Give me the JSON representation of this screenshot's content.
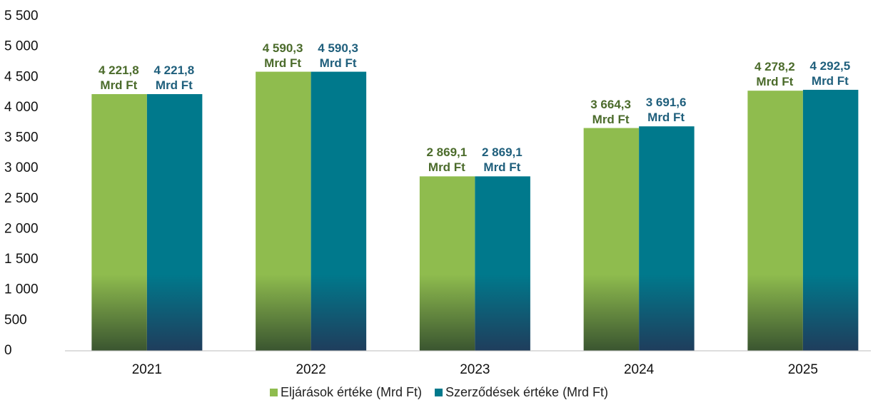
{
  "chart_data": {
    "type": "bar",
    "categories": [
      "2021",
      "2022",
      "2023",
      "2024",
      "2025"
    ],
    "series": [
      {
        "name": "Eljárások értéke (Mrd Ft)",
        "color": "#8fbc4e",
        "label_color": "#4b6b2b",
        "values": [
          4221.8,
          4590.3,
          2869.1,
          3664.3,
          4278.2
        ],
        "value_labels": [
          "4 221,8 Mrd Ft",
          "4 590,3 Mrd Ft",
          "2 869,1 Mrd Ft",
          "3 664,3 Mrd Ft",
          "4 278,2 Mrd Ft"
        ]
      },
      {
        "name": "Szerződések értéke (Mrd Ft)",
        "color": "#00798c",
        "label_color": "#1f5f7c",
        "values": [
          4221.8,
          4590.3,
          2869.1,
          3691.6,
          4292.5
        ],
        "value_labels": [
          "4 221,8 Mrd Ft",
          "4 590,3 Mrd Ft",
          "2 869,1 Mrd Ft",
          "3 691,6 Mrd Ft",
          "4 292,5 Mrd Ft"
        ]
      }
    ],
    "ylim": [
      0,
      5500
    ],
    "yticks": [
      0,
      500,
      {
        "value": 1000,
        "label": "1 000"
      },
      {
        "value": 1500,
        "label": "1 500"
      },
      {
        "value": 2000,
        "label": "2 000"
      },
      {
        "value": 2500,
        "label": "2 500"
      },
      {
        "value": 3000,
        "label": "3 000"
      },
      {
        "value": 3500,
        "label": "3 500"
      },
      {
        "value": 4000,
        "label": "4 000"
      },
      {
        "value": 4500,
        "label": "4 500"
      },
      {
        "value": 5000,
        "label": "5 000"
      },
      {
        "value": 5500,
        "label": "5 500"
      }
    ],
    "grid": false,
    "legend": "bottom"
  }
}
